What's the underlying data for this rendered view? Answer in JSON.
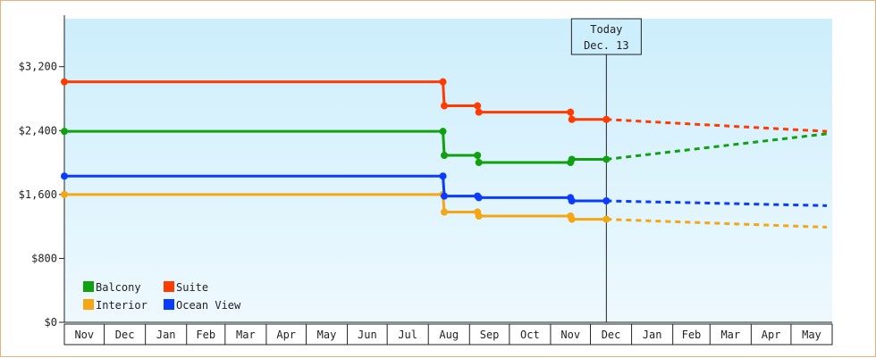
{
  "chart_data": {
    "type": "line",
    "title": "",
    "xlabel": "",
    "ylabel": "",
    "y_axis": {
      "min": 0,
      "max": 3800,
      "ticks": [
        0,
        800,
        1600,
        2400,
        3200
      ],
      "tick_labels": [
        "$0",
        "$800",
        "$1,600",
        "$2,400",
        "$3,200"
      ]
    },
    "x_axis": {
      "start": "2023-11-01",
      "months": [
        "Nov",
        "Dec",
        "Jan",
        "Feb",
        "Mar",
        "Apr",
        "May",
        "Jun",
        "Jul",
        "Aug",
        "Sep",
        "Oct",
        "Nov",
        "Dec",
        "Jan",
        "Feb",
        "Mar",
        "Apr",
        "May"
      ],
      "month_starts": [
        "2023-11-01",
        "2023-12-01",
        "2024-01-01",
        "2024-02-01",
        "2024-03-01",
        "2024-04-01",
        "2024-05-01",
        "2024-06-01",
        "2024-07-01",
        "2024-08-01",
        "2024-09-01",
        "2024-10-01",
        "2024-11-01",
        "2024-12-01",
        "2025-01-01",
        "2025-02-01",
        "2025-03-01",
        "2025-04-01",
        "2025-05-01",
        "2025-06-01"
      ]
    },
    "grid": false,
    "background": "light-blue gradient",
    "today_marker": {
      "date": "2024-12-13",
      "line1": "Today",
      "line2": "Dec. 13"
    },
    "legend": {
      "position": "bottom-left"
    },
    "series": [
      {
        "name": "Balcony",
        "color": "#10a010",
        "points": [
          {
            "date": "2023-11-01",
            "value": 2390
          },
          {
            "date": "2024-08-12",
            "value": 2390
          },
          {
            "date": "2024-08-13",
            "value": 2090
          },
          {
            "date": "2024-09-07",
            "value": 2090
          },
          {
            "date": "2024-09-08",
            "value": 2000
          },
          {
            "date": "2024-11-16",
            "value": 2000
          },
          {
            "date": "2024-11-17",
            "value": 2040
          },
          {
            "date": "2024-12-13",
            "value": 2040
          }
        ],
        "forecast": [
          {
            "date": "2024-12-13",
            "value": 2040
          },
          {
            "date": "2025-05-28",
            "value": 2360
          }
        ]
      },
      {
        "name": "Suite",
        "color": "#ff3b00",
        "points": [
          {
            "date": "2023-11-01",
            "value": 3010
          },
          {
            "date": "2024-08-12",
            "value": 3010
          },
          {
            "date": "2024-08-13",
            "value": 2710
          },
          {
            "date": "2024-09-07",
            "value": 2710
          },
          {
            "date": "2024-09-08",
            "value": 2630
          },
          {
            "date": "2024-11-16",
            "value": 2630
          },
          {
            "date": "2024-11-17",
            "value": 2540
          },
          {
            "date": "2024-12-13",
            "value": 2540
          }
        ],
        "forecast": [
          {
            "date": "2024-12-13",
            "value": 2540
          },
          {
            "date": "2025-05-28",
            "value": 2390
          }
        ]
      },
      {
        "name": "Interior",
        "color": "#f4a614",
        "points": [
          {
            "date": "2023-11-01",
            "value": 1600
          },
          {
            "date": "2024-08-12",
            "value": 1600
          },
          {
            "date": "2024-08-13",
            "value": 1380
          },
          {
            "date": "2024-09-07",
            "value": 1380
          },
          {
            "date": "2024-09-08",
            "value": 1330
          },
          {
            "date": "2024-11-16",
            "value": 1330
          },
          {
            "date": "2024-11-17",
            "value": 1290
          },
          {
            "date": "2024-12-13",
            "value": 1290
          }
        ],
        "forecast": [
          {
            "date": "2024-12-13",
            "value": 1290
          },
          {
            "date": "2025-05-28",
            "value": 1190
          }
        ]
      },
      {
        "name": "Ocean View",
        "color": "#0a3cff",
        "points": [
          {
            "date": "2023-11-01",
            "value": 1830
          },
          {
            "date": "2024-08-12",
            "value": 1830
          },
          {
            "date": "2024-08-13",
            "value": 1580
          },
          {
            "date": "2024-09-07",
            "value": 1580
          },
          {
            "date": "2024-09-08",
            "value": 1560
          },
          {
            "date": "2024-11-16",
            "value": 1560
          },
          {
            "date": "2024-11-17",
            "value": 1520
          },
          {
            "date": "2024-12-13",
            "value": 1520
          }
        ],
        "forecast": [
          {
            "date": "2024-12-13",
            "value": 1520
          },
          {
            "date": "2025-05-28",
            "value": 1460
          }
        ]
      }
    ]
  }
}
